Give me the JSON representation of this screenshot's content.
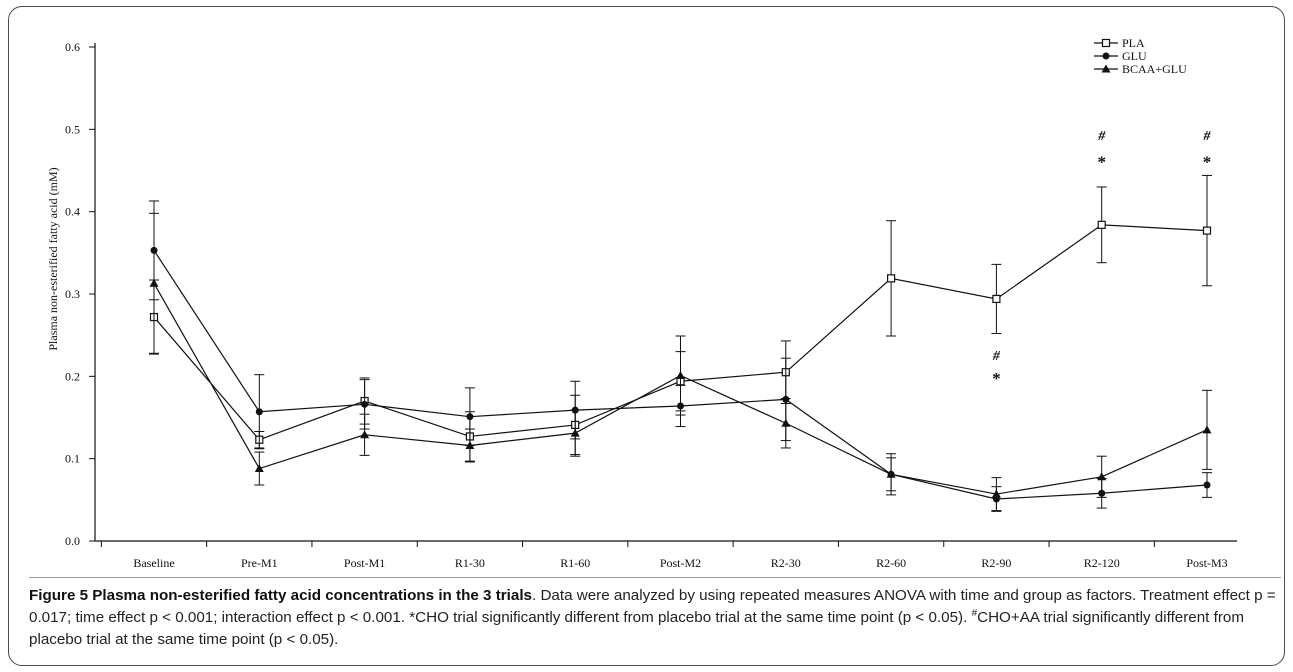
{
  "figure": {
    "caption_title": "Figure 5 Plasma non-esterified fatty acid concentrations in the 3 trials",
    "caption_text_1": ". Data were analyzed by using repeated measures ANOVA with time and group as factors. Treatment effect p = 0.017; time effect p < 0.001; interaction effect p < 0.001. *CHO trial significantly different from placebo trial at the same time point (p < 0.05). ",
    "caption_sup": "#",
    "caption_text_2": "CHO+AA trial significantly different from placebo trial at the same time point (p < 0.05)."
  },
  "chart_data": {
    "type": "line",
    "title": "",
    "xlabel": "",
    "ylabel": "Plasma non-esterified fatty acid (mM)",
    "ylim": [
      0.0,
      0.6
    ],
    "yticks": [
      "0.0",
      "0.1",
      "0.2",
      "0.3",
      "0.4",
      "0.5",
      "0.6"
    ],
    "categories": [
      "Baseline",
      "Pre-M1",
      "Post-M1",
      "R1-30",
      "R1-60",
      "Post-M2",
      "R2-30",
      "R2-60",
      "R2-90",
      "R2-120",
      "Post-M3"
    ],
    "grid": false,
    "legend_position": "top-right",
    "series": [
      {
        "name": "PLA",
        "marker": "open-square",
        "color": "#111111",
        "values": [
          0.272,
          0.123,
          0.17,
          0.127,
          0.141,
          0.194,
          0.205,
          0.319,
          0.294,
          0.384,
          0.377
        ],
        "errors": [
          0.045,
          0.01,
          0.028,
          0.03,
          0.036,
          0.036,
          0.038,
          0.07,
          0.042,
          0.046,
          0.067
        ]
      },
      {
        "name": "GLU",
        "marker": "filled-circle",
        "color": "#111111",
        "values": [
          0.353,
          0.157,
          0.166,
          0.151,
          0.159,
          0.164,
          0.172,
          0.081,
          0.051,
          0.058,
          0.068
        ],
        "errors": [
          0.06,
          0.045,
          0.03,
          0.035,
          0.035,
          0.025,
          0.05,
          0.025,
          0.015,
          0.018,
          0.015
        ]
      },
      {
        "name": "BCAA+GLU",
        "marker": "filled-triangle",
        "color": "#111111",
        "values": [
          0.313,
          0.088,
          0.129,
          0.116,
          0.131,
          0.201,
          0.143,
          0.081,
          0.057,
          0.078,
          0.135
        ],
        "errors": [
          0.085,
          0.02,
          0.025,
          0.02,
          0.028,
          0.048,
          0.03,
          0.02,
          0.02,
          0.025,
          0.048
        ]
      }
    ],
    "annotations": [
      {
        "category": "R2-90",
        "y": 0.226,
        "text": "#"
      },
      {
        "category": "R2-90",
        "y": 0.197,
        "text": "*"
      },
      {
        "category": "R2-120",
        "y": 0.493,
        "text": "#"
      },
      {
        "category": "R2-120",
        "y": 0.46,
        "text": "*"
      },
      {
        "category": "Post-M3",
        "y": 0.493,
        "text": "#"
      },
      {
        "category": "Post-M3",
        "y": 0.46,
        "text": "*"
      }
    ]
  }
}
